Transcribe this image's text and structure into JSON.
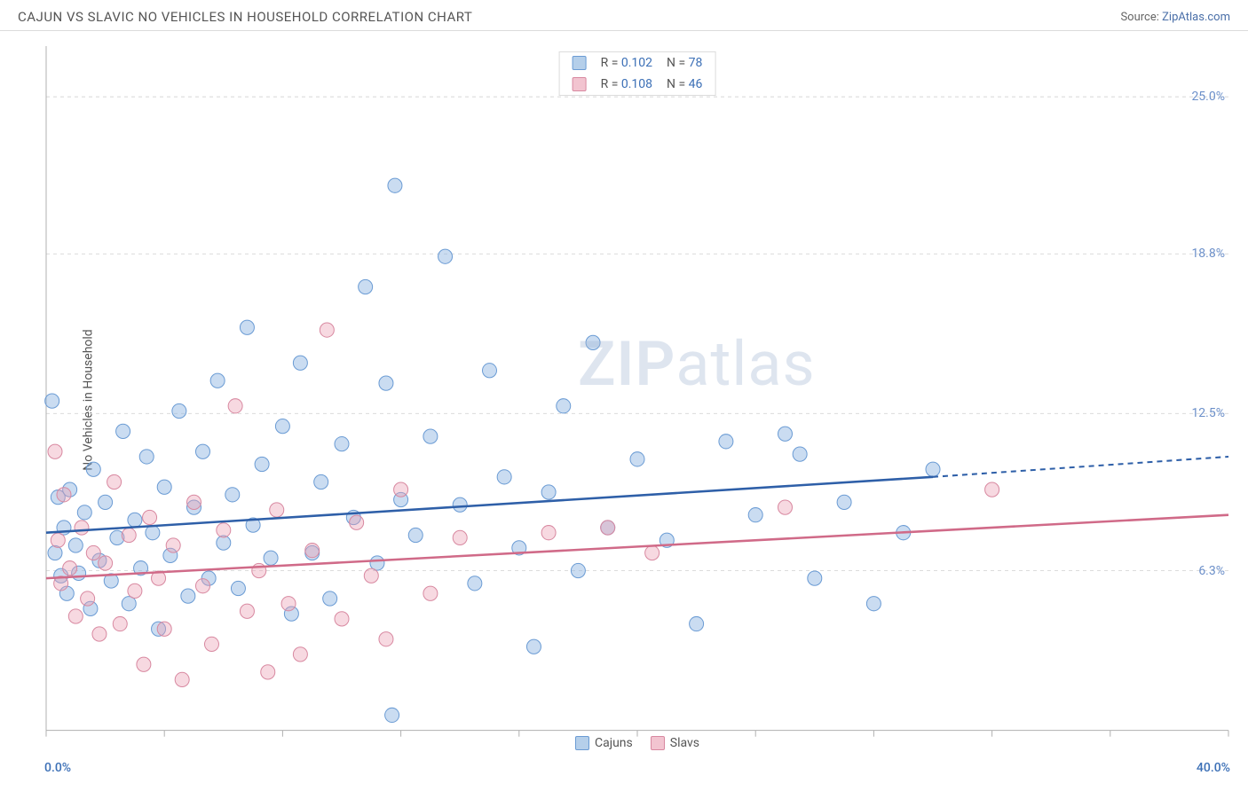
{
  "header": {
    "title": "CAJUN VS SLAVIC NO VEHICLES IN HOUSEHOLD CORRELATION CHART",
    "source_label": "Source:",
    "source_link": "ZipAtlas.com"
  },
  "chart": {
    "type": "scatter",
    "ylabel": "No Vehicles in Household",
    "background_color": "#ffffff",
    "grid_color": "#dcdcdc",
    "axis_color": "#b0b0b0",
    "xlim": [
      0,
      40
    ],
    "ylim": [
      0,
      27
    ],
    "y_gridlines": [
      6.3,
      12.5,
      18.8,
      25.0
    ],
    "y_gridlabels": [
      "6.3%",
      "12.5%",
      "18.8%",
      "25.0%"
    ],
    "x_ticks": [
      0,
      4,
      8,
      12,
      16,
      20,
      24,
      28,
      32,
      36,
      40
    ],
    "xmin_label": "0.0%",
    "xmax_label": "40.0%",
    "watermark": {
      "prefix": "ZIP",
      "suffix": "atlas"
    },
    "series": [
      {
        "name": "Cajuns",
        "color_fill": "rgba(137,178,225,0.45)",
        "color_stroke": "#6a9bd4",
        "swatch_fill": "#b5cfea",
        "swatch_stroke": "#6a9bd4",
        "trend_color": "#2e5fa8",
        "R": "0.102",
        "N": "78",
        "trend": {
          "x1": 0,
          "y1": 7.8,
          "x2": 30,
          "y2": 10.0,
          "x2_dash": 40,
          "y2_dash": 10.8
        },
        "marker_radius": 8,
        "points": [
          [
            0.2,
            13.0
          ],
          [
            0.3,
            7.0
          ],
          [
            0.4,
            9.2
          ],
          [
            0.5,
            6.1
          ],
          [
            0.6,
            8.0
          ],
          [
            0.7,
            5.4
          ],
          [
            0.8,
            9.5
          ],
          [
            1.0,
            7.3
          ],
          [
            1.1,
            6.2
          ],
          [
            1.3,
            8.6
          ],
          [
            1.5,
            4.8
          ],
          [
            1.6,
            10.3
          ],
          [
            1.8,
            6.7
          ],
          [
            2.0,
            9.0
          ],
          [
            2.2,
            5.9
          ],
          [
            2.4,
            7.6
          ],
          [
            2.6,
            11.8
          ],
          [
            2.8,
            5.0
          ],
          [
            3.0,
            8.3
          ],
          [
            3.2,
            6.4
          ],
          [
            3.4,
            10.8
          ],
          [
            3.6,
            7.8
          ],
          [
            3.8,
            4.0
          ],
          [
            4.0,
            9.6
          ],
          [
            4.2,
            6.9
          ],
          [
            4.5,
            12.6
          ],
          [
            4.8,
            5.3
          ],
          [
            5.0,
            8.8
          ],
          [
            5.3,
            11.0
          ],
          [
            5.5,
            6.0
          ],
          [
            5.8,
            13.8
          ],
          [
            6.0,
            7.4
          ],
          [
            6.3,
            9.3
          ],
          [
            6.5,
            5.6
          ],
          [
            6.8,
            15.9
          ],
          [
            7.0,
            8.1
          ],
          [
            7.3,
            10.5
          ],
          [
            7.6,
            6.8
          ],
          [
            8.0,
            12.0
          ],
          [
            8.3,
            4.6
          ],
          [
            8.6,
            14.5
          ],
          [
            9.0,
            7.0
          ],
          [
            9.3,
            9.8
          ],
          [
            9.6,
            5.2
          ],
          [
            10.0,
            11.3
          ],
          [
            10.4,
            8.4
          ],
          [
            10.8,
            17.5
          ],
          [
            11.2,
            6.6
          ],
          [
            11.5,
            13.7
          ],
          [
            11.7,
            0.6
          ],
          [
            11.8,
            21.5
          ],
          [
            12.0,
            9.1
          ],
          [
            12.5,
            7.7
          ],
          [
            13.0,
            11.6
          ],
          [
            13.5,
            18.7
          ],
          [
            14.0,
            8.9
          ],
          [
            14.5,
            5.8
          ],
          [
            15.0,
            14.2
          ],
          [
            15.5,
            10.0
          ],
          [
            16.0,
            7.2
          ],
          [
            16.5,
            3.3
          ],
          [
            17.0,
            9.4
          ],
          [
            17.5,
            12.8
          ],
          [
            18.0,
            6.3
          ],
          [
            18.5,
            15.3
          ],
          [
            19.0,
            8.0
          ],
          [
            20.0,
            10.7
          ],
          [
            21.0,
            7.5
          ],
          [
            22.0,
            4.2
          ],
          [
            23.0,
            11.4
          ],
          [
            24.0,
            8.5
          ],
          [
            25.0,
            11.7
          ],
          [
            25.5,
            10.9
          ],
          [
            26.0,
            6.0
          ],
          [
            27.0,
            9.0
          ],
          [
            28.0,
            5.0
          ],
          [
            29.0,
            7.8
          ],
          [
            30.0,
            10.3
          ]
        ]
      },
      {
        "name": "Slavs",
        "color_fill": "rgba(235,160,180,0.40)",
        "color_stroke": "#d888a0",
        "swatch_fill": "#f2c4d0",
        "swatch_stroke": "#d888a0",
        "trend_color": "#d06a88",
        "R": "0.108",
        "N": "46",
        "trend": {
          "x1": 0,
          "y1": 6.0,
          "x2": 40,
          "y2": 8.5
        },
        "marker_radius": 8,
        "points": [
          [
            0.3,
            11.0
          ],
          [
            0.4,
            7.5
          ],
          [
            0.5,
            5.8
          ],
          [
            0.6,
            9.3
          ],
          [
            0.8,
            6.4
          ],
          [
            1.0,
            4.5
          ],
          [
            1.2,
            8.0
          ],
          [
            1.4,
            5.2
          ],
          [
            1.6,
            7.0
          ],
          [
            1.8,
            3.8
          ],
          [
            2.0,
            6.6
          ],
          [
            2.3,
            9.8
          ],
          [
            2.5,
            4.2
          ],
          [
            2.8,
            7.7
          ],
          [
            3.0,
            5.5
          ],
          [
            3.3,
            2.6
          ],
          [
            3.5,
            8.4
          ],
          [
            3.8,
            6.0
          ],
          [
            4.0,
            4.0
          ],
          [
            4.3,
            7.3
          ],
          [
            4.6,
            2.0
          ],
          [
            5.0,
            9.0
          ],
          [
            5.3,
            5.7
          ],
          [
            5.6,
            3.4
          ],
          [
            6.0,
            7.9
          ],
          [
            6.4,
            12.8
          ],
          [
            6.8,
            4.7
          ],
          [
            7.2,
            6.3
          ],
          [
            7.5,
            2.3
          ],
          [
            7.8,
            8.7
          ],
          [
            8.2,
            5.0
          ],
          [
            8.6,
            3.0
          ],
          [
            9.0,
            7.1
          ],
          [
            9.5,
            15.8
          ],
          [
            10.0,
            4.4
          ],
          [
            10.5,
            8.2
          ],
          [
            11.0,
            6.1
          ],
          [
            11.5,
            3.6
          ],
          [
            12.0,
            9.5
          ],
          [
            13.0,
            5.4
          ],
          [
            14.0,
            7.6
          ],
          [
            17.0,
            7.8
          ],
          [
            19.0,
            8.0
          ],
          [
            20.5,
            7.0
          ],
          [
            25.0,
            8.8
          ],
          [
            32.0,
            9.5
          ]
        ]
      }
    ],
    "legend_bottom": [
      {
        "label": "Cajuns",
        "series": 0
      },
      {
        "label": "Slavs",
        "series": 1
      }
    ]
  }
}
